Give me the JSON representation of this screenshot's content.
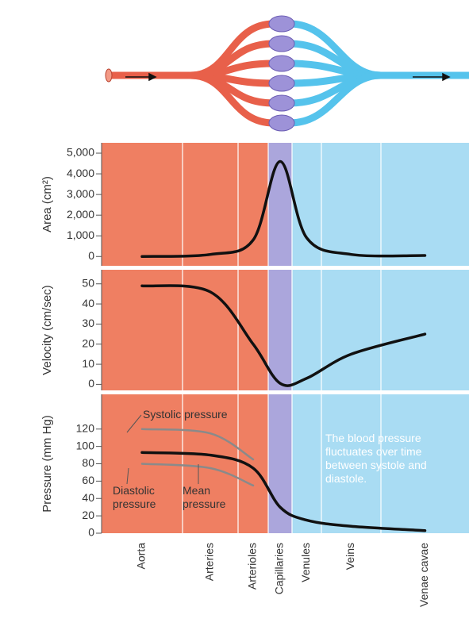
{
  "chart_data": {
    "type": "line",
    "categories": [
      "Aorta",
      "Arteries",
      "Arterioles",
      "Capillaries",
      "Venules",
      "Veins",
      "Venae cavae"
    ],
    "category_colors": [
      "#ef7f62",
      "#ef7f62",
      "#ef7f62",
      "#aba6dc",
      "#a9dcf3",
      "#a9dcf3",
      "#a9dcf3"
    ],
    "panels": [
      {
        "y_label": "Area (cm²)",
        "ylim": [
          -450,
          5500
        ],
        "yticks": [
          0,
          {
            "value": 1000,
            "label": "1,000"
          },
          {
            "value": 2000,
            "label": "2,000"
          },
          {
            "value": 3000,
            "label": "3,000"
          },
          {
            "value": 4000,
            "label": "4,000"
          },
          {
            "value": 5000,
            "label": "5,000"
          }
        ],
        "series": [
          {
            "color": "#111111",
            "values": [
              0,
              100,
              800,
              4600,
              900,
              100,
              50
            ]
          }
        ]
      },
      {
        "y_label": "Velocity (cm/sec)",
        "ylim": [
          -3,
          57
        ],
        "yticks": [
          0,
          10,
          20,
          30,
          40,
          50
        ],
        "series": [
          {
            "color": "#111111",
            "values": [
              49,
              46,
              20,
              0.5,
              3,
              15,
              25
            ]
          }
        ]
      },
      {
        "y_label": "Pressure (mm Hg)",
        "ylim": [
          0,
          160
        ],
        "yticks": [
          0,
          20,
          40,
          60,
          80,
          100,
          120
        ],
        "series": [
          {
            "name": "Systolic pressure",
            "color": "#8a8a8a",
            "values": [
              120,
              115,
              85,
              null,
              null,
              null,
              null
            ]
          },
          {
            "name": "Diastolic pressure",
            "color": "#8a8a8a",
            "values": [
              80,
              75,
              55,
              null,
              null,
              null,
              null
            ]
          },
          {
            "name": "Mean pressure",
            "color": "#111111",
            "values": [
              93,
              90,
              75,
              30,
              15,
              8,
              3
            ]
          }
        ],
        "annotation": "The blood pressure fluctuates over time between systole and diastole."
      }
    ]
  }
}
